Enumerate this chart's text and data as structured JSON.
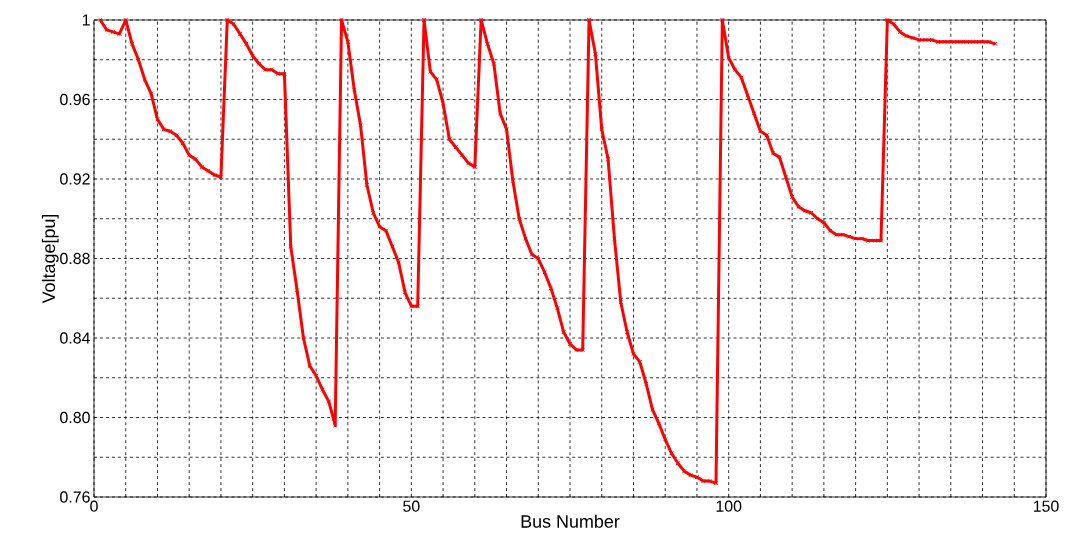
{
  "chart_data": {
    "type": "line",
    "xlabel": "Bus Number",
    "ylabel": "Voltage[pu]",
    "xlim": [
      0,
      150
    ],
    "ylim": [
      0.76,
      1
    ],
    "xticks": [
      0,
      50,
      100,
      150
    ],
    "yticks": [
      0.76,
      {
        "value": 0.8,
        "label": "0.80"
      },
      0.84,
      0.88,
      0.92,
      0.96,
      1
    ],
    "grid": true,
    "marker": "cross",
    "line_style": "solid",
    "series": [
      {
        "color": "#ff0000",
        "x": [
          1,
          2,
          3,
          4,
          5,
          6,
          7,
          8,
          9,
          10,
          11,
          12,
          13,
          14,
          15,
          16,
          17,
          18,
          19,
          20,
          21,
          22,
          23,
          24,
          25,
          26,
          27,
          28,
          29,
          30,
          31,
          32,
          33,
          34,
          35,
          36,
          37,
          38,
          39,
          40,
          41,
          42,
          43,
          44,
          45,
          46,
          47,
          48,
          49,
          50,
          51,
          52,
          53,
          54,
          55,
          56,
          57,
          58,
          59,
          60,
          61,
          62,
          63,
          64,
          65,
          66,
          67,
          68,
          69,
          70,
          71,
          72,
          73,
          74,
          75,
          76,
          77,
          78,
          79,
          80,
          81,
          82,
          83,
          84,
          85,
          86,
          87,
          88,
          89,
          90,
          91,
          92,
          93,
          94,
          95,
          96,
          97,
          98,
          99,
          100,
          101,
          102,
          103,
          104,
          105,
          106,
          107,
          108,
          109,
          110,
          111,
          112,
          113,
          114,
          115,
          116,
          117,
          118,
          119,
          120,
          121,
          122,
          123,
          124,
          125,
          126,
          127,
          128,
          129,
          130,
          131,
          132,
          133,
          134,
          135,
          136,
          137,
          138,
          139,
          140,
          141,
          142
        ],
        "values": [
          1.0,
          0.995,
          0.994,
          0.993,
          1.0,
          0.988,
          0.98,
          0.97,
          0.963,
          0.95,
          0.945,
          0.944,
          0.942,
          0.938,
          0.932,
          0.93,
          0.926,
          0.924,
          0.922,
          0.921,
          1.0,
          0.998,
          0.993,
          0.988,
          0.982,
          0.978,
          0.975,
          0.975,
          0.973,
          0.973,
          0.886,
          0.864,
          0.84,
          0.826,
          0.821,
          0.814,
          0.808,
          0.796,
          1.0,
          0.989,
          0.965,
          0.947,
          0.917,
          0.903,
          0.896,
          0.894,
          0.886,
          0.878,
          0.863,
          0.856,
          0.856,
          1.0,
          0.974,
          0.97,
          0.958,
          0.94,
          0.936,
          0.932,
          0.928,
          0.926,
          1.0,
          0.988,
          0.978,
          0.953,
          0.945,
          0.919,
          0.9,
          0.89,
          0.882,
          0.88,
          0.873,
          0.865,
          0.855,
          0.843,
          0.837,
          0.834,
          0.834,
          1.0,
          0.983,
          0.945,
          0.93,
          0.89,
          0.858,
          0.843,
          0.832,
          0.828,
          0.817,
          0.804,
          0.797,
          0.789,
          0.782,
          0.777,
          0.773,
          0.771,
          0.77,
          0.768,
          0.768,
          0.767,
          1.0,
          0.981,
          0.975,
          0.971,
          0.962,
          0.953,
          0.944,
          0.942,
          0.933,
          0.931,
          0.921,
          0.911,
          0.906,
          0.904,
          0.903,
          0.9,
          0.898,
          0.894,
          0.892,
          0.892,
          0.891,
          0.89,
          0.89,
          0.889,
          0.889,
          0.889,
          1.0,
          0.998,
          0.994,
          0.992,
          0.991,
          0.99,
          0.99,
          0.99,
          0.989,
          0.989,
          0.989,
          0.989,
          0.989,
          0.989,
          0.989,
          0.989,
          0.989,
          0.988
        ]
      }
    ]
  }
}
